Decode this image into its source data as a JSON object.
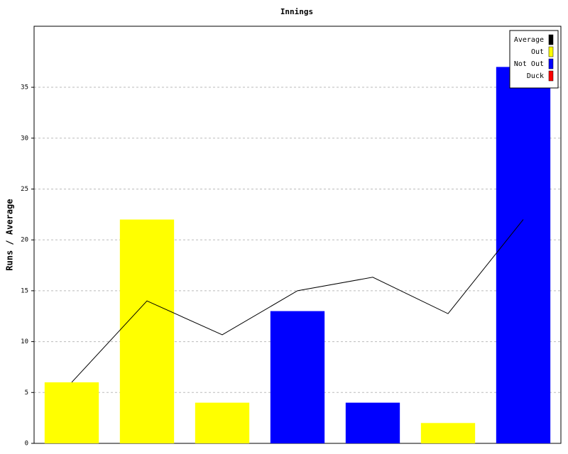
{
  "chart_data": {
    "type": "bar",
    "title": "Innings",
    "y_label": "Runs / Average",
    "ylim": [
      0,
      41
    ],
    "yticks": [
      0,
      5,
      10,
      15,
      20,
      25,
      30,
      35
    ],
    "grid": true,
    "legend": "top-right",
    "series": [
      {
        "name": "Average",
        "color": "#000000",
        "type": "line",
        "values": [
          6,
          14,
          10.67,
          15,
          16.33,
          12.75,
          22
        ]
      },
      {
        "name": "Out",
        "color": "#ffff00",
        "values": [
          6,
          22,
          4,
          null,
          null,
          2,
          null
        ]
      },
      {
        "name": "Not Out",
        "color": "#0000ff",
        "values": [
          null,
          null,
          null,
          13,
          4,
          null,
          37
        ]
      },
      {
        "name": "Duck",
        "color": "#ff0000",
        "values": [
          null,
          null,
          null,
          null,
          null,
          null,
          null
        ]
      }
    ]
  }
}
